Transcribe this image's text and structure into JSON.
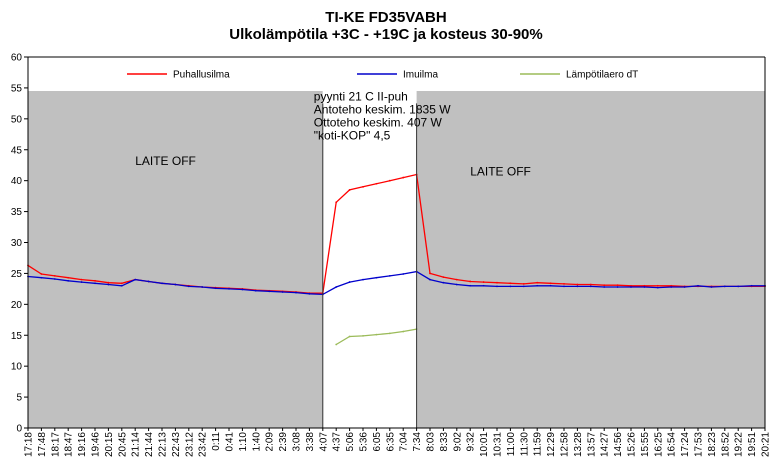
{
  "chart_data": {
    "type": "line",
    "title": "TI-KE FD35VABH",
    "subtitle": "Ulkolämpötila +3C - +19C ja kosteus 30-90%",
    "xlabel": "",
    "ylabel": "",
    "ylim": [
      0,
      60
    ],
    "yticks": [
      0,
      5,
      10,
      15,
      20,
      25,
      30,
      35,
      40,
      45,
      50,
      55,
      60
    ],
    "grid": false,
    "legend_position": "top",
    "background_regions": [
      {
        "from": "17:18",
        "to": "4:07",
        "color": "#c0c0c0"
      },
      {
        "from": "4:07",
        "to": "7:34",
        "color": "#ffffff"
      },
      {
        "from": "7:34",
        "to": "20:21",
        "color": "#c0c0c0"
      }
    ],
    "categories": [
      "17:18",
      "17:48",
      "18:17",
      "18:47",
      "19:16",
      "19:46",
      "20:15",
      "20:45",
      "21:14",
      "21:44",
      "22:13",
      "22:43",
      "23:12",
      "23:42",
      "0:11",
      "0:41",
      "1:10",
      "1:40",
      "2:09",
      "2:39",
      "3:08",
      "3:38",
      "4:07",
      "4:37",
      "5:06",
      "5:36",
      "6:05",
      "6:35",
      "7:04",
      "7:34",
      "8:03",
      "8:33",
      "9:02",
      "9:32",
      "10:01",
      "10:31",
      "11:00",
      "11:30",
      "11:59",
      "12:29",
      "12:58",
      "13:28",
      "13:57",
      "14:27",
      "14:56",
      "15:26",
      "15:55",
      "16:25",
      "16:54",
      "17:24",
      "17:53",
      "18:23",
      "18:52",
      "19:22",
      "19:51",
      "20:21"
    ],
    "series": [
      {
        "name": "Puhallusilma",
        "color": "#ff0000",
        "values": [
          26.3,
          24.9,
          24.6,
          24.3,
          24.0,
          23.8,
          23.5,
          23.4,
          24.0,
          23.7,
          23.4,
          23.2,
          23.0,
          22.8,
          22.7,
          22.6,
          22.5,
          22.3,
          22.2,
          22.1,
          22.0,
          21.8,
          21.8,
          36.5,
          38.5,
          39.0,
          39.5,
          40.0,
          40.5,
          41.0,
          25.0,
          24.4,
          24.0,
          23.7,
          23.6,
          23.5,
          23.4,
          23.3,
          23.5,
          23.4,
          23.3,
          23.2,
          23.2,
          23.1,
          23.1,
          23.0,
          23.0,
          23.0,
          23.0,
          22.9,
          22.9,
          22.9,
          22.9,
          22.9,
          22.9,
          22.9
        ]
      },
      {
        "name": "Imuilma",
        "color": "#0000cc",
        "values": [
          24.5,
          24.3,
          24.1,
          23.8,
          23.6,
          23.4,
          23.2,
          23.0,
          24.0,
          23.7,
          23.4,
          23.2,
          22.9,
          22.8,
          22.6,
          22.5,
          22.4,
          22.2,
          22.1,
          22.0,
          21.9,
          21.7,
          21.6,
          22.8,
          23.6,
          24.0,
          24.3,
          24.6,
          24.9,
          25.3,
          24.0,
          23.5,
          23.2,
          23.0,
          23.0,
          22.9,
          22.9,
          22.9,
          23.0,
          23.0,
          22.9,
          22.9,
          22.9,
          22.8,
          22.8,
          22.8,
          22.8,
          22.7,
          22.8,
          22.8,
          23.0,
          22.8,
          22.9,
          22.9,
          23.0,
          23.0
        ]
      },
      {
        "name": "Lämpötilaero dT",
        "color": "#9bbb59",
        "values": [
          null,
          null,
          null,
          null,
          null,
          null,
          null,
          null,
          null,
          null,
          null,
          null,
          null,
          null,
          null,
          null,
          null,
          null,
          null,
          null,
          null,
          null,
          null,
          13.5,
          14.8,
          14.9,
          15.1,
          15.3,
          15.6,
          16.0,
          null,
          null,
          null,
          null,
          null,
          null,
          null,
          null,
          null,
          null,
          null,
          null,
          null,
          null,
          null,
          null,
          null,
          null,
          null,
          null,
          null,
          null,
          null,
          null,
          null,
          null
        ]
      }
    ],
    "annotations": [
      {
        "lines": [
          "pyynti 21 C II-puh",
          "Antoteho keskim. 1835 W",
          "Ottoteho keskim. 407 W",
          "\"koti-KOP\" 4,5"
        ],
        "x": "4:07",
        "y": 53
      },
      {
        "lines": [
          "LAITE OFF"
        ],
        "x": "21:14",
        "y": 42.5
      },
      {
        "lines": [
          "LAITE OFF"
        ],
        "x": "9:32",
        "y": 40.8
      }
    ]
  }
}
